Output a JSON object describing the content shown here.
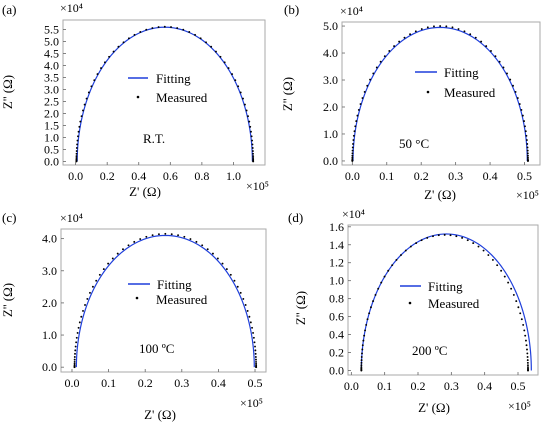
{
  "chart_data": [
    {
      "type": "scatter",
      "panel_label": "(a)",
      "annotation": "R.T.",
      "xlabel": "Z' (Ω)",
      "ylabel": "Z'' (Ω)",
      "x_multiplier": "×10⁵",
      "y_multiplier": "×10⁴",
      "xlim": [
        -0.08,
        1.2
      ],
      "ylim": [
        -0.15,
        5.9
      ],
      "xticks": [
        0.0,
        0.2,
        0.4,
        0.6,
        0.8,
        1.0
      ],
      "xtick_labels": [
        "0.0",
        "0.2",
        "0.4",
        "0.6",
        "0.8",
        "1.0"
      ],
      "yticks": [
        0.0,
        0.5,
        1.0,
        1.5,
        2.0,
        2.5,
        3.0,
        3.5,
        4.0,
        4.5,
        5.0,
        5.5
      ],
      "ytick_labels": [
        "0.0",
        "0.5",
        "1.0",
        "1.5",
        "2.0",
        "2.5",
        "3.0",
        "3.5",
        "4.0",
        "4.5",
        "5.0",
        "5.5"
      ],
      "series": [
        {
          "name": "Fitting",
          "kind": "line",
          "color": "#1f3fdb",
          "center": 0.565,
          "radius": 0.555,
          "height": 5.6
        },
        {
          "name": "Measured",
          "kind": "points",
          "color": "#000000",
          "center": 0.565,
          "radius": 0.56,
          "height": 5.62
        }
      ],
      "legend": "center-right"
    },
    {
      "type": "scatter",
      "panel_label": "(b)",
      "annotation": "50 °C",
      "xlabel": "Z' (Ω)",
      "ylabel": "Z'' (Ω)",
      "x_multiplier": "×10⁵",
      "y_multiplier": "×10⁴",
      "xlim": [
        -0.03,
        0.545
      ],
      "ylim": [
        -0.15,
        5.15
      ],
      "xticks": [
        0.0,
        0.1,
        0.2,
        0.3,
        0.4,
        0.5
      ],
      "xtick_labels": [
        "0.0",
        "0.1",
        "0.2",
        "0.3",
        "0.4",
        "0.5"
      ],
      "yticks": [
        0.0,
        1.0,
        2.0,
        3.0,
        4.0,
        5.0
      ],
      "ytick_labels": [
        "0.0",
        "1.0",
        "2.0",
        "3.0",
        "4.0",
        "5.0"
      ],
      "series": [
        {
          "name": "Fitting",
          "kind": "line",
          "color": "#1f3fdb",
          "center": 0.255,
          "radius": 0.253,
          "height": 4.95
        },
        {
          "name": "Measured",
          "kind": "points",
          "color": "#000000",
          "center": 0.255,
          "radius": 0.255,
          "height": 5.0
        }
      ],
      "legend": "center-right"
    },
    {
      "type": "scatter",
      "panel_label": "(c)",
      "annotation": "100 ºC",
      "xlabel": "Z' (Ω)",
      "ylabel": "Z'' (Ω)",
      "x_multiplier": "×10⁵",
      "y_multiplier": "×10⁴",
      "xlim": [
        -0.03,
        0.53
      ],
      "ylim": [
        -0.15,
        4.3
      ],
      "xticks": [
        0.0,
        0.1,
        0.2,
        0.3,
        0.4,
        0.5
      ],
      "xtick_labels": [
        "0.0",
        "0.1",
        "0.2",
        "0.3",
        "0.4",
        "0.5"
      ],
      "yticks": [
        0.0,
        1.0,
        2.0,
        3.0,
        4.0
      ],
      "ytick_labels": [
        "0.0",
        "1.0",
        "2.0",
        "3.0",
        "4.0"
      ],
      "series": [
        {
          "name": "Fitting",
          "kind": "line",
          "color": "#1f3fdb",
          "center": 0.255,
          "radius": 0.243,
          "height": 4.1
        },
        {
          "name": "Measured",
          "kind": "points",
          "color": "#000000",
          "center": 0.255,
          "radius": 0.248,
          "height": 4.15
        }
      ],
      "legend": "center-right"
    },
    {
      "type": "scatter",
      "panel_label": "(d)",
      "annotation": "200 ºC",
      "xlabel": "Z' (Ω)",
      "ylabel": "Z'' (Ω)",
      "x_multiplier": "×10⁵",
      "y_multiplier": "×10⁴",
      "xlim": [
        -0.01,
        0.56
      ],
      "ylim": [
        -0.05,
        1.62
      ],
      "xticks": [
        0.0,
        0.1,
        0.2,
        0.3,
        0.4,
        0.5
      ],
      "xtick_labels": [
        "0.0",
        "0.1",
        "0.2",
        "0.3",
        "0.4",
        "0.5"
      ],
      "yticks": [
        0.0,
        0.2,
        0.4,
        0.6,
        0.8,
        1.0,
        1.2,
        1.4,
        1.6
      ],
      "ytick_labels": [
        "0.0",
        "0.2",
        "0.4",
        "0.6",
        "0.8",
        "1.0",
        "1.2",
        "1.4",
        "1.6"
      ],
      "series": [
        {
          "name": "Fitting",
          "kind": "line",
          "color": "#1f3fdb",
          "center": 0.285,
          "radius": 0.255,
          "height": 1.52
        },
        {
          "name": "Measured",
          "kind": "points",
          "color": "#000000",
          "center": 0.28,
          "radius": 0.25,
          "height": 1.51
        }
      ],
      "legend": "center-right"
    }
  ]
}
